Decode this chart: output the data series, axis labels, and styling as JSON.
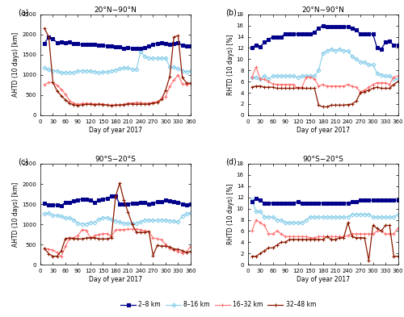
{
  "x": [
    10,
    20,
    30,
    40,
    50,
    60,
    70,
    80,
    90,
    100,
    110,
    120,
    130,
    140,
    150,
    160,
    170,
    180,
    190,
    200,
    210,
    220,
    230,
    240,
    250,
    260,
    270,
    280,
    290,
    300,
    310,
    320,
    330,
    340,
    350,
    360
  ],
  "panel_a": {
    "title": "20°N−90°N",
    "ylabel": "AHTD (10 days) [km]",
    "xlabel": "Day of year 2017",
    "ylim": [
      0,
      2500
    ],
    "yticks": [
      0,
      500,
      1000,
      1500,
      2000,
      2500
    ],
    "xticks": [
      0,
      30,
      60,
      90,
      120,
      150,
      180,
      210,
      240,
      270,
      300,
      330,
      360
    ],
    "series": {
      "2-8km": [
        1780,
        1940,
        1890,
        1800,
        1810,
        1800,
        1810,
        1780,
        1770,
        1750,
        1760,
        1750,
        1750,
        1740,
        1730,
        1720,
        1710,
        1690,
        1700,
        1660,
        1670,
        1660,
        1650,
        1660,
        1680,
        1710,
        1760,
        1780,
        1800,
        1780,
        1760,
        1780,
        1790,
        1730,
        1720,
        1720
      ],
      "8-16km": [
        1180,
        1130,
        1100,
        1100,
        1050,
        1060,
        1060,
        1060,
        1090,
        1100,
        1100,
        1090,
        1080,
        1060,
        1070,
        1070,
        1100,
        1120,
        1150,
        1170,
        1170,
        1140,
        1130,
        1570,
        1460,
        1420,
        1410,
        1410,
        1410,
        1420,
        1190,
        1190,
        1150,
        1100,
        1080,
        1090
      ],
      "16-32km": [
        760,
        810,
        810,
        740,
        640,
        520,
        360,
        300,
        270,
        290,
        290,
        290,
        280,
        280,
        280,
        260,
        250,
        260,
        260,
        270,
        300,
        300,
        310,
        310,
        290,
        300,
        320,
        340,
        410,
        460,
        720,
        870,
        1000,
        780,
        760,
        780
      ],
      "32-48km": [
        2150,
        1940,
        810,
        600,
        480,
        380,
        290,
        260,
        240,
        260,
        270,
        270,
        260,
        270,
        260,
        250,
        240,
        250,
        250,
        260,
        280,
        280,
        270,
        280,
        270,
        280,
        300,
        310,
        390,
        620,
        960,
        1940,
        1970,
        940,
        800,
        790
      ]
    }
  },
  "panel_b": {
    "title": "20°N−90°N",
    "ylabel": "RHTD (10 days) [%]",
    "xlabel": "Day of year 2017",
    "ylim": [
      0,
      18
    ],
    "yticks": [
      0,
      2,
      4,
      6,
      8,
      10,
      12,
      14,
      16,
      18
    ],
    "xticks": [
      0,
      30,
      60,
      90,
      120,
      150,
      180,
      210,
      240,
      270,
      300,
      330,
      360
    ],
    "series": {
      "2-8km": [
        12.1,
        12.5,
        12.2,
        13.0,
        13.5,
        14.0,
        14.0,
        14.0,
        14.5,
        14.5,
        14.5,
        14.5,
        14.5,
        14.5,
        14.5,
        14.8,
        15.5,
        16.0,
        15.8,
        15.8,
        15.8,
        15.8,
        15.8,
        15.8,
        15.5,
        15.2,
        14.5,
        14.5,
        14.5,
        14.5,
        12.0,
        11.8,
        13.0,
        13.2,
        12.5,
        12.5
      ],
      "8-16km": [
        6.8,
        6.8,
        6.5,
        7.0,
        6.5,
        7.0,
        7.0,
        7.0,
        7.0,
        7.0,
        7.0,
        6.8,
        7.0,
        7.0,
        7.0,
        7.0,
        8.0,
        11.0,
        11.5,
        11.8,
        11.5,
        11.8,
        11.5,
        11.5,
        10.5,
        10.0,
        9.5,
        9.5,
        9.0,
        9.0,
        7.5,
        7.2,
        7.0,
        7.0,
        6.5,
        6.5
      ],
      "16-32km": [
        6.8,
        8.6,
        6.5,
        6.4,
        6.0,
        5.6,
        5.5,
        5.5,
        5.5,
        5.5,
        5.5,
        4.8,
        5.0,
        6.8,
        6.8,
        6.5,
        5.2,
        5.5,
        5.2,
        5.2,
        5.2,
        5.2,
        5.2,
        5.5,
        5.2,
        5.0,
        4.2,
        4.5,
        5.0,
        5.5,
        5.8,
        5.8,
        5.8,
        5.5,
        6.8,
        7.0
      ],
      "32-48km": [
        5.0,
        5.2,
        5.2,
        5.0,
        5.0,
        5.0,
        4.8,
        4.8,
        4.8,
        4.8,
        4.8,
        4.9,
        4.8,
        4.8,
        4.8,
        4.8,
        1.8,
        1.5,
        1.5,
        1.8,
        1.8,
        1.8,
        1.8,
        1.9,
        2.0,
        2.5,
        4.0,
        4.2,
        4.5,
        4.8,
        5.0,
        4.8,
        4.8,
        4.8,
        5.5,
        6.0
      ]
    }
  },
  "panel_c": {
    "title": "90°S−20°S",
    "ylabel": "AHTD (10 days) [km]",
    "xlabel": "Day of year 2017",
    "ylim": [
      0,
      2500
    ],
    "yticks": [
      0,
      500,
      1000,
      1500,
      2000,
      2500
    ],
    "xticks": [
      0,
      30,
      60,
      90,
      120,
      150,
      180,
      210,
      240,
      270,
      300,
      330,
      360
    ],
    "series": {
      "2-8km": [
        1520,
        1490,
        1480,
        1480,
        1470,
        1540,
        1550,
        1580,
        1610,
        1620,
        1620,
        1600,
        1540,
        1600,
        1620,
        1640,
        1700,
        1700,
        1510,
        1510,
        1510,
        1520,
        1520,
        1540,
        1550,
        1510,
        1520,
        1560,
        1570,
        1600,
        1580,
        1560,
        1550,
        1510,
        1490,
        1510
      ],
      "8-16km": [
        1260,
        1280,
        1220,
        1220,
        1200,
        1160,
        1160,
        1110,
        1030,
        1010,
        1010,
        1050,
        1050,
        1130,
        1160,
        1170,
        1120,
        1090,
        1060,
        1030,
        1020,
        1020,
        1030,
        1060,
        1110,
        1100,
        1100,
        1100,
        1110,
        1100,
        1090,
        1080,
        1060,
        1210,
        1260,
        1280
      ],
      "16-32km": [
        400,
        390,
        360,
        300,
        200,
        460,
        650,
        670,
        720,
        870,
        850,
        660,
        720,
        750,
        770,
        770,
        700,
        860,
        870,
        870,
        880,
        880,
        880,
        870,
        840,
        820,
        660,
        640,
        620,
        500,
        400,
        370,
        330,
        290,
        320,
        450
      ],
      "32-48km": [
        400,
        270,
        210,
        210,
        340,
        650,
        660,
        650,
        640,
        640,
        660,
        670,
        670,
        640,
        640,
        640,
        670,
        1680,
        2020,
        1600,
        1300,
        1000,
        800,
        800,
        800,
        820,
        230,
        480,
        460,
        460,
        440,
        390,
        380,
        350,
        300,
        330
      ]
    }
  },
  "panel_d": {
    "title": "90°S−20°S",
    "ylabel": "RHTD (10 days) [%]",
    "xlabel": "Day of year 2017",
    "ylim": [
      0,
      18
    ],
    "yticks": [
      0,
      2,
      4,
      6,
      8,
      10,
      12,
      14,
      16,
      18
    ],
    "xticks": [
      0,
      30,
      60,
      90,
      120,
      150,
      180,
      210,
      240,
      270,
      300,
      330,
      360
    ],
    "series": {
      "2-8km": [
        11.2,
        11.8,
        11.5,
        11.0,
        11.0,
        11.0,
        11.0,
        11.0,
        11.0,
        11.0,
        11.0,
        11.2,
        11.0,
        11.0,
        11.0,
        11.0,
        11.0,
        11.0,
        11.0,
        11.0,
        11.0,
        11.0,
        11.0,
        11.0,
        11.2,
        11.2,
        11.5,
        11.5,
        11.5,
        11.5,
        11.5,
        11.5,
        11.5,
        11.5,
        11.5,
        11.5
      ],
      "8-16km": [
        11.5,
        9.5,
        9.5,
        8.5,
        8.5,
        8.5,
        8.0,
        8.0,
        7.5,
        7.5,
        7.5,
        7.5,
        7.5,
        8.0,
        8.5,
        8.5,
        8.5,
        8.5,
        8.5,
        8.5,
        8.5,
        8.5,
        8.5,
        8.5,
        9.0,
        9.0,
        9.0,
        9.0,
        9.0,
        8.5,
        8.5,
        8.5,
        8.5,
        8.5,
        8.5,
        9.0
      ],
      "16-32km": [
        6.0,
        8.0,
        7.5,
        7.0,
        5.5,
        5.5,
        6.0,
        5.5,
        5.0,
        5.0,
        5.0,
        5.0,
        5.0,
        5.0,
        4.8,
        4.8,
        5.0,
        5.0,
        5.0,
        5.0,
        5.0,
        5.0,
        5.0,
        5.2,
        5.5,
        5.5,
        5.5,
        5.5,
        5.5,
        5.5,
        6.0,
        6.0,
        5.5,
        5.5,
        5.5,
        6.5
      ],
      "32-48km": [
        1.5,
        1.5,
        2.0,
        2.5,
        3.0,
        3.0,
        3.5,
        4.0,
        4.0,
        4.5,
        4.5,
        4.5,
        4.5,
        4.5,
        4.5,
        4.5,
        4.5,
        4.5,
        5.0,
        4.5,
        4.5,
        4.8,
        4.8,
        7.5,
        5.0,
        4.8,
        4.8,
        4.8,
        0.8,
        7.0,
        6.5,
        6.0,
        7.0,
        7.0,
        1.5,
        1.5
      ]
    }
  },
  "color_2_8": "#00008B",
  "color_8_16": "#87CEEB",
  "color_16_32": "#FF7070",
  "color_32_48": "#8B1A00",
  "legend_labels": [
    "2–8 km",
    "8–16 km",
    "16–32 km",
    "32–48 km"
  ]
}
